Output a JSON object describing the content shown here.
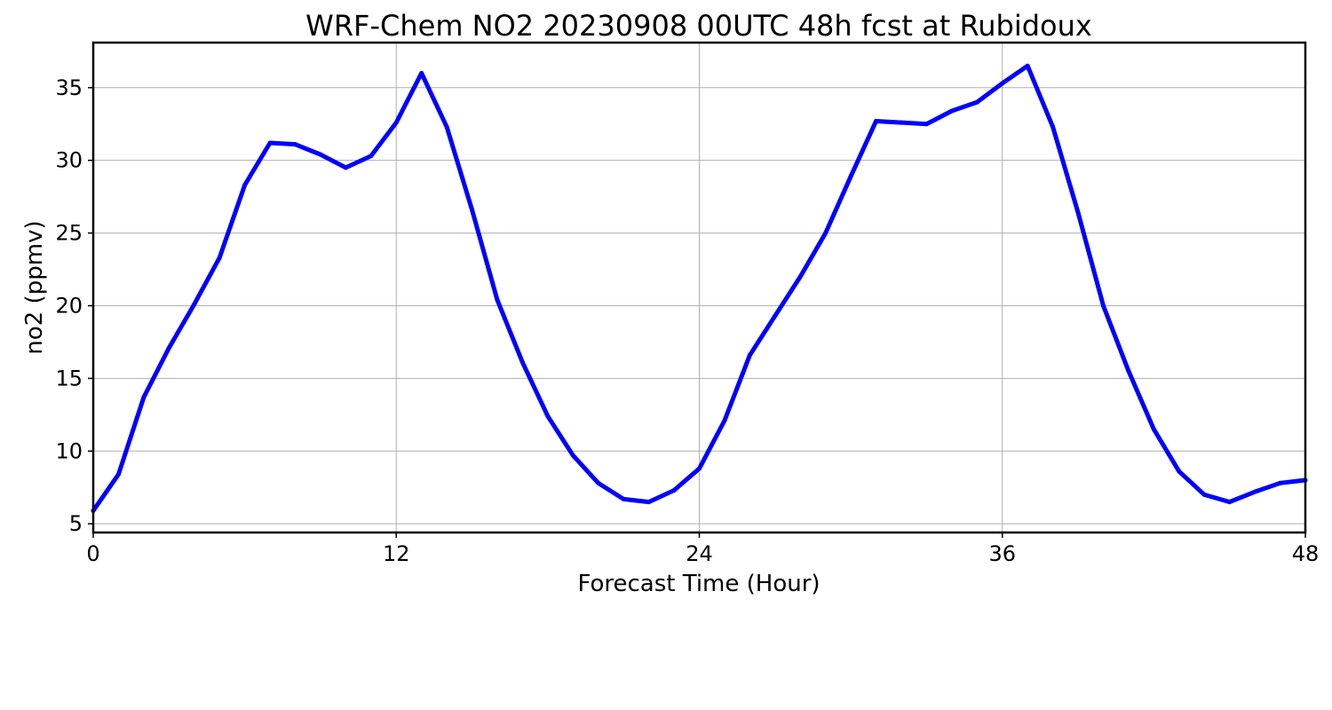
{
  "chart_data": {
    "type": "line",
    "title": "WRF-Chem NO2  20230908 00UTC 48h fcst at Rubidoux",
    "xlabel": "Forecast Time (Hour)",
    "ylabel": "no2  (ppmv)",
    "xlim": [
      0,
      48
    ],
    "ylim": [
      4.4,
      38.1
    ],
    "x_ticks": [
      0,
      12,
      24,
      36,
      48
    ],
    "y_ticks": [
      5,
      10,
      15,
      20,
      25,
      30,
      35
    ],
    "grid": true,
    "legend": "none",
    "series": [
      {
        "color": "#0000ff",
        "x": [
          0,
          1,
          2,
          3,
          4,
          5,
          6,
          7,
          8,
          9,
          10,
          11,
          12,
          13,
          14,
          15,
          16,
          17,
          18,
          19,
          20,
          21,
          22,
          23,
          24,
          25,
          26,
          27,
          28,
          29,
          30,
          31,
          32,
          33,
          34,
          35,
          36,
          37,
          38,
          39,
          40,
          41,
          42,
          43,
          44,
          45,
          46,
          47,
          48
        ],
        "values": [
          5.9,
          8.4,
          13.7,
          17.1,
          20.1,
          23.3,
          28.3,
          31.2,
          31.1,
          30.4,
          29.5,
          30.3,
          32.6,
          36.0,
          32.3,
          26.6,
          20.4,
          16.1,
          12.4,
          9.7,
          7.8,
          6.7,
          6.5,
          7.3,
          8.8,
          12.1,
          16.6,
          19.3,
          22.0,
          25.0,
          28.9,
          32.7,
          32.6,
          32.5,
          33.4,
          34.0,
          35.3,
          36.5,
          32.3,
          26.4,
          20.0,
          15.5,
          11.5,
          8.6,
          7.0,
          6.5,
          7.2,
          7.8,
          8.0
        ]
      }
    ]
  }
}
